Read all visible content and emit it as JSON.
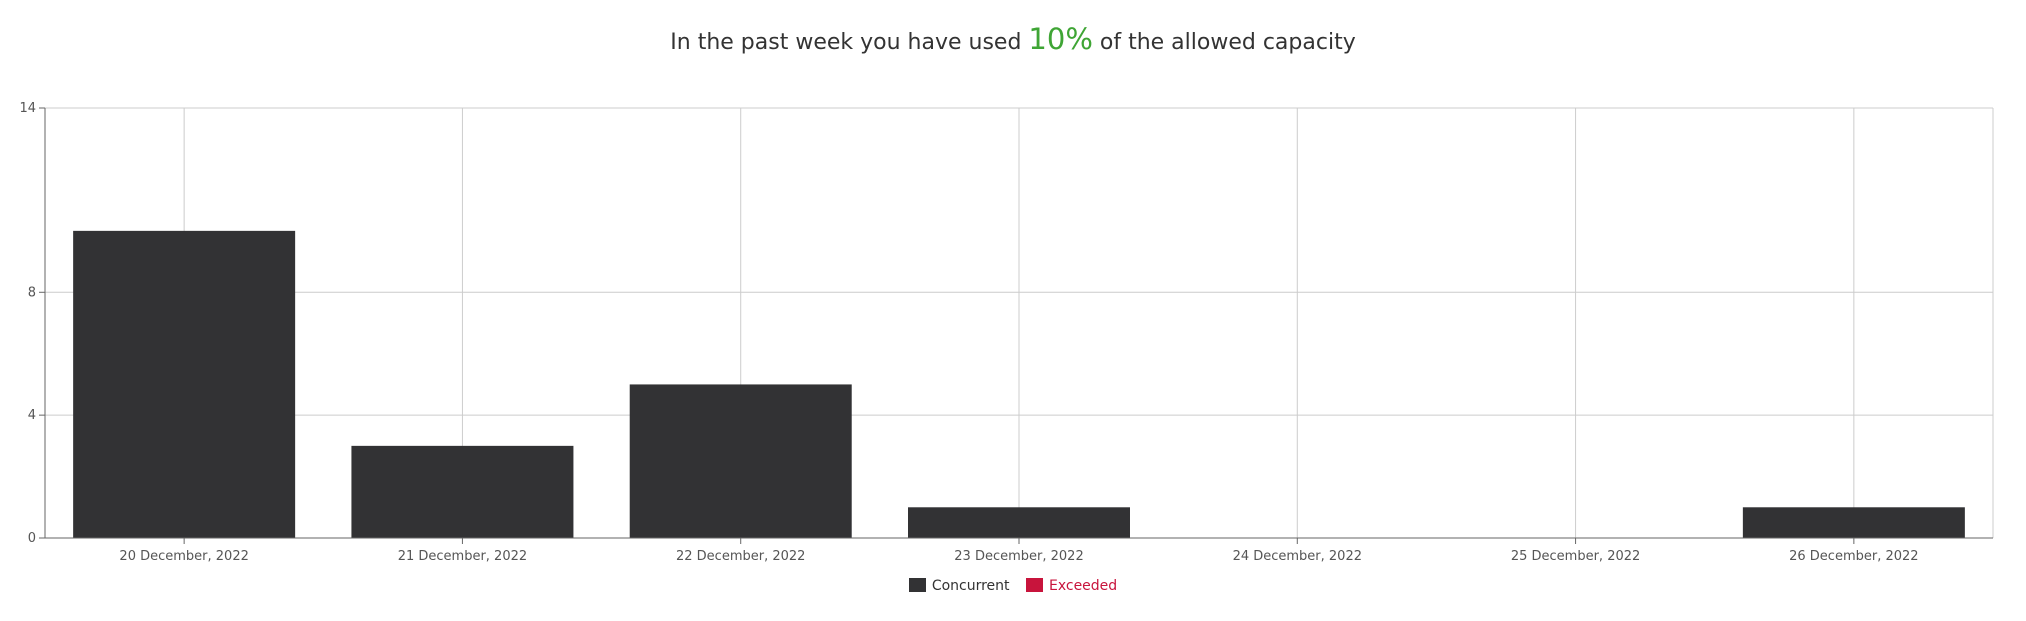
{
  "headline": {
    "prefix": "In the past week you have used",
    "percent": "10%",
    "suffix": "of the allowed capacity",
    "percent_color": "#3fa535"
  },
  "chart_data": {
    "type": "bar",
    "categories": [
      "20 December, 2022",
      "21 December, 2022",
      "22 December, 2022",
      "23 December, 2022",
      "24 December, 2022",
      "25 December, 2022",
      "26 December, 2022"
    ],
    "series": [
      {
        "name": "Concurrent",
        "color": "#323234",
        "values": [
          10,
          3,
          5,
          1,
          0,
          0,
          1
        ]
      },
      {
        "name": "Exceeded",
        "color": "#c8143c",
        "values": [
          0,
          0,
          0,
          0,
          0,
          0,
          0
        ]
      }
    ],
    "yticks": [
      0,
      4,
      8,
      14
    ],
    "ylim": [
      0,
      14
    ],
    "grid": true,
    "legend_position": "bottom-center"
  }
}
